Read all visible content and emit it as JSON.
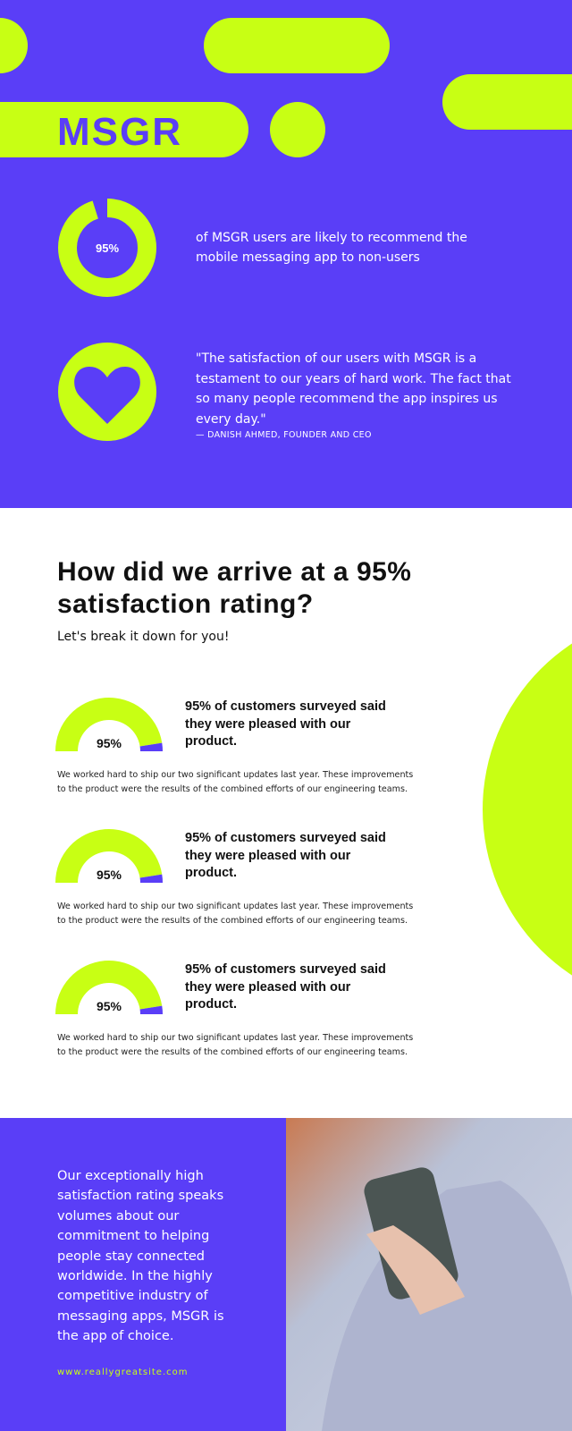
{
  "header": {
    "brand": "MSGR"
  },
  "stat": {
    "value": 95,
    "label": "95%",
    "text": "of MSGR users are likely to recommend the mobile messaging app to non-users"
  },
  "quote": {
    "text": "\"The satisfaction of our users with MSGR is a testament to our years of hard work. The fact that so many people recommend the app inspires us every day.\"",
    "attribution": "— DANISH AHMED, FOUNDER AND CEO"
  },
  "breakdown": {
    "title": "How did we arrive at a 95% satisfaction rating?",
    "subtitle": "Let's break it down for you!",
    "items": [
      {
        "value": 95,
        "label": "95%",
        "heading": "95% of customers surveyed said they were pleased with our product.",
        "body": "We worked hard to ship our two significant updates last year. These improvements to the product were the results of the combined efforts of our engineering teams."
      },
      {
        "value": 95,
        "label": "95%",
        "heading": "95% of customers surveyed said they were pleased with our product.",
        "body": "We worked hard to ship our two significant updates last year. These improvements to the product were the results of the combined efforts of our engineering teams."
      },
      {
        "value": 95,
        "label": "95%",
        "heading": "95% of customers surveyed said they were pleased with our product.",
        "body": "We worked hard to ship our two significant updates last year. These improvements to the product were the results of the combined efforts of our engineering teams."
      }
    ]
  },
  "footer": {
    "text": "Our exceptionally high satisfaction rating speaks volumes about our commitment to helping people stay connected worldwide. In the highly competitive industry of messaging apps, MSGR is the app of choice.",
    "url": "www.reallygreatsite.com"
  }
}
